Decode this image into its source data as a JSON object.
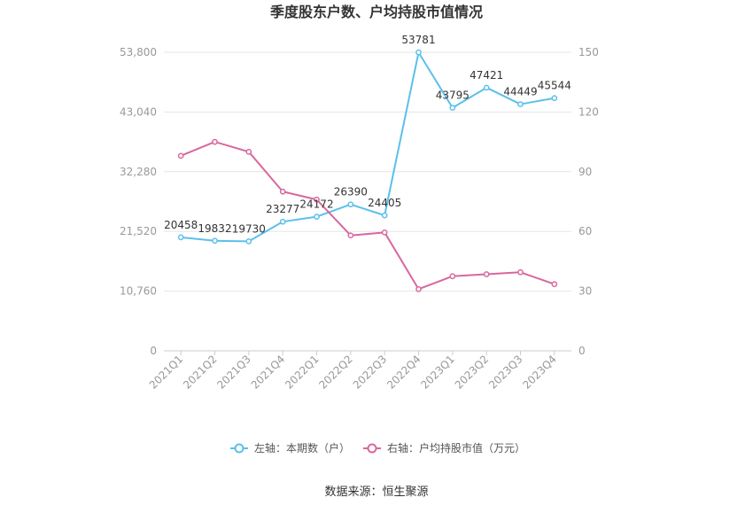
{
  "chart_data": {
    "type": "line",
    "title": "季度股东户数、户均持股市值情况",
    "categories": [
      "2021Q1",
      "2021Q2",
      "2021Q3",
      "2021Q4",
      "2022Q1",
      "2022Q2",
      "2022Q3",
      "2022Q4",
      "2023Q1",
      "2023Q2",
      "2023Q3",
      "2023Q4"
    ],
    "left_axis": {
      "ticks": [
        "0",
        "10,760",
        "21,520",
        "32,280",
        "43,040",
        "53,800"
      ],
      "ylim": [
        0,
        53800
      ]
    },
    "right_axis": {
      "ticks": [
        "0",
        "30",
        "60",
        "90",
        "120",
        "150"
      ],
      "ylim": [
        0,
        150
      ]
    },
    "series": [
      {
        "name": "左轴：本期数（户）",
        "axis": "left",
        "color": "#5bc0eb",
        "values": [
          20458,
          19832,
          19730,
          23277,
          24172,
          26390,
          24405,
          53781,
          43795,
          47421,
          44449,
          45544
        ],
        "labels": [
          "20458",
          "19832",
          "19730",
          "23277",
          "24172",
          "26390",
          "24405",
          "53781",
          "43795",
          "47421",
          "44449",
          "45544"
        ]
      },
      {
        "name": "右轴：户均持股市值（万元）",
        "axis": "right",
        "color": "#d9679f",
        "values": [
          98,
          105,
          100,
          80,
          76,
          58,
          59.5,
          31,
          37.5,
          38.5,
          39.5,
          33.5
        ]
      }
    ],
    "legend_position": "bottom",
    "grid": true
  },
  "source": "数据来源：恒生聚源"
}
